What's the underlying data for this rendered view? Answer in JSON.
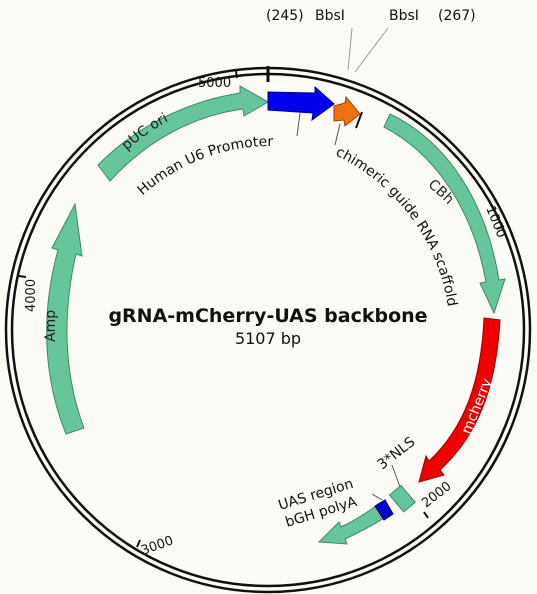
{
  "title": "gRNA-mCherry-UAS backbone",
  "size": "5107 bp",
  "ticks": [
    "5000",
    "1000",
    "2000",
    "3000",
    "4000"
  ],
  "sites": {
    "left_pos": "(245)",
    "left_name": "BbsI",
    "right_name": "BbsI",
    "right_pos": "(267)"
  },
  "features": {
    "puc_ori": "pUC ori",
    "human_u6": "Human U6 Promoter",
    "chimeric": "chimeric guide RNA scaffold",
    "cbh": "CBh",
    "mcherry": "mcherry",
    "nls": "3*NLS",
    "uas": "UAS region",
    "bgh": "bGH polyA",
    "amp": "Amp"
  },
  "colors": {
    "ring": "#111111",
    "green": "#66c59a",
    "blue": "#0000ee",
    "orange": "#f07010",
    "red": "#ee0000",
    "background": "#fdfbf6"
  }
}
